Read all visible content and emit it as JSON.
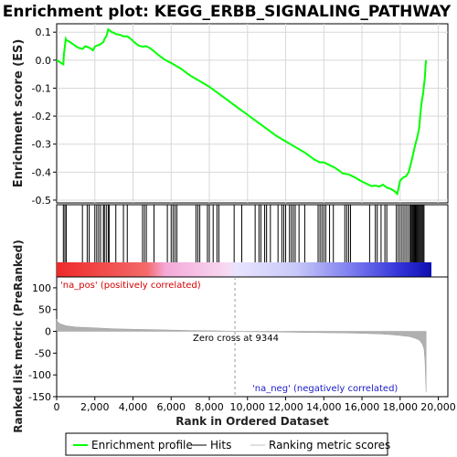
{
  "chart_data": {
    "type": "line",
    "title": "Enrichment plot: KEGG_ERBB_SIGNALING_PATHWAY",
    "top_panel": {
      "ylabel": "Enrichment score (ES)",
      "ylim": [
        -0.51,
        0.13
      ],
      "yticks": [
        0.1,
        0.0,
        -0.1,
        -0.2,
        -0.3,
        -0.4,
        -0.5
      ],
      "ytick_labels": [
        "0.1",
        "0.0",
        "-0.1",
        "-0.2",
        "-0.3",
        "-0.4",
        "-0.5"
      ],
      "grid": true,
      "series": [
        {
          "name": "Enrichment profile",
          "color": "#00ff00",
          "x": [
            0,
            350,
            380,
            430,
            480,
            500,
            700,
            900,
            1100,
            1350,
            1500,
            1700,
            1900,
            2000,
            2100,
            2250,
            2350,
            2450,
            2500,
            2600,
            2650,
            2700,
            2800,
            2900,
            3000,
            3100,
            3200,
            3350,
            3500,
            3700,
            3900,
            4100,
            4300,
            4500,
            4700,
            4900,
            5100,
            5300,
            5500,
            5700,
            6000,
            6500,
            7000,
            7500,
            8000,
            8500,
            9000,
            9500,
            10000,
            10500,
            11000,
            11500,
            12000,
            12500,
            13000,
            13500,
            13800,
            14000,
            14300,
            14600,
            15000,
            15300,
            15600,
            15900,
            16200,
            16500,
            16700,
            16900,
            17100,
            17300,
            17500,
            17700,
            17850,
            18000,
            18150,
            18300,
            18450,
            18600,
            18700,
            18800,
            18900,
            18950,
            19000,
            19050,
            19100,
            19150,
            19200,
            19250,
            19300,
            19330,
            19360
          ],
          "y": [
            0.0,
            -0.015,
            0.02,
            0.05,
            0.075,
            0.072,
            0.065,
            0.055,
            0.045,
            0.04,
            0.05,
            0.045,
            0.035,
            0.048,
            0.052,
            0.055,
            0.06,
            0.065,
            0.075,
            0.085,
            0.095,
            0.11,
            0.105,
            0.1,
            0.098,
            0.093,
            0.092,
            0.09,
            0.085,
            0.085,
            0.075,
            0.062,
            0.052,
            0.048,
            0.05,
            0.042,
            0.032,
            0.02,
            0.01,
            0.0,
            -0.01,
            -0.03,
            -0.055,
            -0.075,
            -0.095,
            -0.12,
            -0.145,
            -0.17,
            -0.195,
            -0.22,
            -0.245,
            -0.27,
            -0.29,
            -0.31,
            -0.33,
            -0.355,
            -0.365,
            -0.365,
            -0.375,
            -0.385,
            -0.405,
            -0.408,
            -0.418,
            -0.43,
            -0.44,
            -0.45,
            -0.448,
            -0.452,
            -0.445,
            -0.455,
            -0.46,
            -0.468,
            -0.478,
            -0.43,
            -0.42,
            -0.415,
            -0.4,
            -0.36,
            -0.33,
            -0.3,
            -0.275,
            -0.26,
            -0.24,
            -0.2,
            -0.165,
            -0.14,
            -0.12,
            -0.09,
            -0.06,
            -0.02,
            0.0
          ]
        }
      ]
    },
    "hits_panel": {
      "label": "Hits",
      "hit_positions": [
        350,
        430,
        500,
        1350,
        1600,
        1700,
        2000,
        2100,
        2200,
        2300,
        2450,
        2500,
        2600,
        2700,
        2750,
        3100,
        3500,
        3700,
        4500,
        4600,
        4700,
        5100,
        5800,
        6000,
        6100,
        6200,
        6300,
        7300,
        7400,
        7500,
        7900,
        8000,
        8200,
        8400,
        8500,
        9300,
        9700,
        10400,
        10600,
        10700,
        10900,
        11000,
        11200,
        11600,
        11800,
        11900,
        12000,
        12200,
        12300,
        12400,
        12500,
        12700,
        13000,
        13700,
        13800,
        13900,
        14000,
        14100,
        14300,
        14500,
        15100,
        15200,
        15300,
        15400,
        16400,
        16700,
        16800,
        17000,
        17200,
        17300,
        17800,
        17900,
        18000,
        18100,
        18200,
        18300,
        18400,
        18500,
        18550,
        18600,
        18650,
        18700,
        18750,
        18800,
        18850,
        18900,
        18950,
        19000,
        19050,
        19100,
        19150,
        19200,
        19250
      ]
    },
    "bottom_panel": {
      "ylabel": "Ranked list metric (PreRanked)",
      "xlabel": "Rank in Ordered Dataset",
      "ylim": [
        -150,
        125
      ],
      "yticks": [
        100,
        50,
        0,
        -50,
        -100,
        -150
      ],
      "ytick_labels": [
        "100",
        "50",
        "0",
        "-50",
        "-100",
        "-150"
      ],
      "xlim": [
        0,
        20500
      ],
      "xticks": [
        0,
        2000,
        4000,
        6000,
        8000,
        10000,
        12000,
        14000,
        16000,
        18000,
        20000
      ],
      "xtick_labels": [
        "0",
        "2,000",
        "4,000",
        "6,000",
        "8,000",
        "10,000",
        "12,000",
        "14,000",
        "16,000",
        "18,000",
        "20,000"
      ],
      "metric_x": [
        0,
        50,
        200,
        500,
        1000,
        2000,
        3000,
        4000,
        5000,
        6000,
        7000,
        8000,
        9000,
        9344,
        10000,
        11000,
        12000,
        13000,
        14000,
        15000,
        16000,
        17000,
        17500,
        18000,
        18500,
        18800,
        19000,
        19150,
        19250,
        19300,
        19360
      ],
      "metric_y": [
        28,
        22,
        17,
        13,
        10,
        8,
        6,
        5,
        4,
        3,
        2,
        1.5,
        0.7,
        0,
        -0.7,
        -1.2,
        -1.8,
        -2.5,
        -3,
        -3.5,
        -4.5,
        -6,
        -7.5,
        -9.5,
        -12,
        -16,
        -20,
        -28,
        -40,
        -65,
        -140
      ],
      "annotations": {
        "pos_label": "'na_pos' (positively correlated)",
        "neg_label": "'na_neg' (negatively correlated)",
        "zero_cross": "Zero cross at 9344",
        "zero_cross_rank": 9344
      }
    },
    "legend": {
      "placement": "bottom",
      "items": [
        {
          "label": "Enrichment profile",
          "color": "#00ff00"
        },
        {
          "label": "Hits",
          "color": "#000000"
        },
        {
          "label": "Ranking metric scores",
          "color": "#c0c0c0"
        }
      ]
    },
    "colors": {
      "profile": "#00ff00",
      "pos_annotation": "#d40000",
      "neg_annotation": "#1a1acc",
      "metric_fill": "#b0b0b0"
    }
  }
}
